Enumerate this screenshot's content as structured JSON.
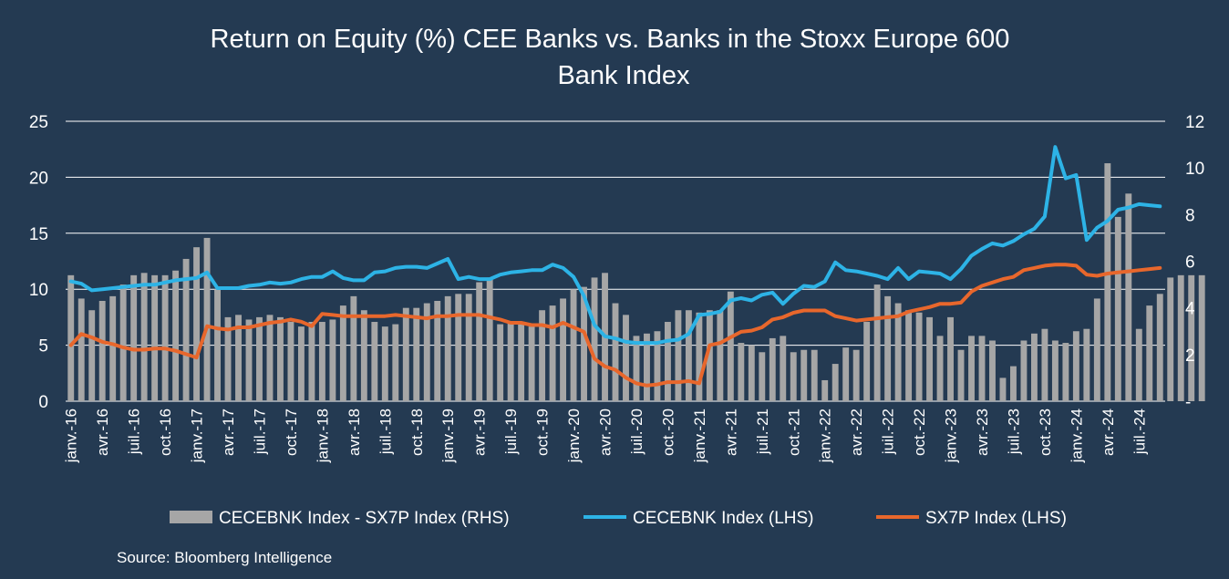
{
  "chart_data": {
    "type": "bar",
    "title_lines": [
      "Return on Equity (%) CEE Banks vs. Banks in the Stoxx Europe 600",
      "Bank Index"
    ],
    "source": "Source: Bloomberg Intelligence",
    "start": "2016-01",
    "months": 105,
    "left_axis": {
      "min": 0,
      "max": 25,
      "ticks": [
        "0",
        "5",
        "10",
        "15",
        "20",
        "25"
      ],
      "tick_values": [
        0,
        5,
        10,
        15,
        20,
        25
      ]
    },
    "right_axis": {
      "min": 0,
      "max": 12,
      "ticks": [
        "-",
        "2",
        "4",
        "6",
        "8",
        "10",
        "12"
      ],
      "tick_values": [
        0,
        2,
        4,
        6,
        8,
        10,
        12
      ]
    },
    "grid": true,
    "legend_position": "bottom",
    "x_tick_labels": [
      "janv.-16",
      "avr.-16",
      "juil.-16",
      "oct.-16",
      "janv.-17",
      "avr.-17",
      "juil.-17",
      "oct.-17",
      "janv.-18",
      "avr.-18",
      "juil.-18",
      "oct.-18",
      "janv.-19",
      "avr.-19",
      "juil.-19",
      "oct.-19",
      "janv.-20",
      "avr.-20",
      "juil.-20",
      "oct.-20",
      "janv.-21",
      "avr.-21",
      "juil.-21",
      "oct.-21",
      "janv.-22",
      "avr.-22",
      "juil.-22",
      "oct.-22",
      "janv.-23",
      "avr.-23",
      "juil.-23",
      "oct.-23",
      "janv.-24",
      "avr.-24",
      "juil.-24"
    ],
    "x_tick_every": 3,
    "series": [
      {
        "name": "CECEBNK Index - SX7P Index (RHS)",
        "type": "bar",
        "axis": "right",
        "color": "#a6a6a6",
        "values": [
          5.4,
          4.4,
          3.9,
          4.3,
          4.5,
          5.0,
          5.4,
          5.5,
          5.4,
          5.4,
          5.6,
          6.1,
          6.6,
          7.0,
          4.8,
          3.6,
          3.7,
          3.5,
          3.6,
          3.7,
          3.6,
          3.4,
          3.2,
          3.4,
          3.4,
          3.5,
          4.1,
          4.5,
          3.9,
          3.4,
          3.2,
          3.3,
          4.0,
          4.0,
          4.2,
          4.3,
          4.5,
          4.6,
          4.6,
          5.1,
          5.3,
          3.3,
          3.4,
          3.3,
          3.2,
          3.9,
          4.1,
          4.4,
          4.8,
          4.9,
          5.3,
          5.5,
          4.2,
          3.7,
          2.8,
          2.9,
          3.0,
          3.4,
          3.9,
          3.9,
          3.8,
          3.9,
          3.9,
          4.7,
          2.5,
          2.4,
          2.1,
          2.7,
          2.8,
          2.1,
          2.2,
          2.2,
          0.9,
          1.6,
          2.3,
          2.2,
          3.4,
          5.0,
          4.5,
          4.2,
          3.9,
          3.8,
          3.6,
          2.8,
          3.6,
          2.2,
          2.8,
          2.8,
          2.6,
          1.0,
          1.5,
          2.6,
          2.9,
          3.1,
          2.6,
          2.5,
          3.0,
          3.1,
          4.4,
          10.2,
          7.9,
          8.9,
          3.1,
          4.1,
          4.6,
          5.3,
          5.4,
          5.4,
          5.4
        ]
      },
      {
        "name": "CECEBNK Index (LHS)",
        "type": "line",
        "axis": "left",
        "color": "#2db3e6",
        "values": [
          10.7,
          10.5,
          9.9,
          10.0,
          10.1,
          10.2,
          10.3,
          10.4,
          10.4,
          10.6,
          10.8,
          10.9,
          11.0,
          11.5,
          10.1,
          10.1,
          10.1,
          10.3,
          10.4,
          10.6,
          10.5,
          10.6,
          10.9,
          11.1,
          11.1,
          11.6,
          11.0,
          10.8,
          10.8,
          11.5,
          11.6,
          11.9,
          12.0,
          12.0,
          11.9,
          12.3,
          12.7,
          10.9,
          11.1,
          10.9,
          10.9,
          11.3,
          11.5,
          11.6,
          11.7,
          11.7,
          12.2,
          11.9,
          11.1,
          9.4,
          6.8,
          5.8,
          5.6,
          5.3,
          5.2,
          5.2,
          5.2,
          5.4,
          5.5,
          6.0,
          7.7,
          7.8,
          8.0,
          9.0,
          9.2,
          9.0,
          9.5,
          9.7,
          8.7,
          9.6,
          10.3,
          10.2,
          10.7,
          12.4,
          11.7,
          11.6,
          11.4,
          11.2,
          10.9,
          11.9,
          10.9,
          11.6,
          11.5,
          11.4,
          10.9,
          11.8,
          13.0,
          13.6,
          14.1,
          13.9,
          14.3,
          14.9,
          15.4,
          16.5,
          22.7,
          19.9,
          20.2,
          14.4,
          15.5,
          16.1,
          17.1,
          17.3,
          17.6,
          17.5,
          17.4
        ]
      },
      {
        "name": "SX7P Index (LHS)",
        "type": "line",
        "axis": "left",
        "color": "#e8672c",
        "values": [
          5.0,
          6.0,
          5.7,
          5.3,
          5.1,
          4.8,
          4.6,
          4.6,
          4.7,
          4.7,
          4.5,
          4.2,
          3.9,
          6.7,
          6.5,
          6.4,
          6.6,
          6.6,
          6.8,
          7.0,
          7.1,
          7.3,
          7.1,
          6.7,
          7.8,
          7.7,
          7.6,
          7.6,
          7.6,
          7.6,
          7.6,
          7.7,
          7.6,
          7.5,
          7.4,
          7.6,
          7.6,
          7.7,
          7.7,
          7.7,
          7.5,
          7.3,
          7.0,
          7.0,
          6.8,
          6.8,
          6.6,
          7.0,
          6.6,
          6.2,
          3.8,
          3.1,
          2.8,
          2.1,
          1.6,
          1.4,
          1.5,
          1.7,
          1.7,
          1.8,
          1.6,
          5.0,
          5.2,
          5.7,
          6.2,
          6.3,
          6.6,
          7.3,
          7.5,
          7.9,
          8.1,
          8.1,
          8.1,
          7.6,
          7.4,
          7.2,
          7.3,
          7.4,
          7.5,
          7.6,
          8.0,
          8.2,
          8.4,
          8.7,
          8.7,
          8.8,
          9.8,
          10.3,
          10.6,
          10.9,
          11.1,
          11.7,
          11.9,
          12.1,
          12.2,
          12.2,
          12.1,
          11.3,
          11.2,
          11.4,
          11.5,
          11.6,
          11.7,
          11.8,
          11.9
        ]
      }
    ]
  }
}
